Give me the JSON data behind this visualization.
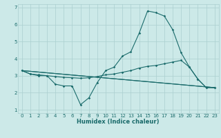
{
  "title": "",
  "xlabel": "Humidex (Indice chaleur)",
  "background_color": "#cce9e8",
  "grid_color": "#aacfcf",
  "line_color": "#1a6b6b",
  "xlim": [
    -0.5,
    23.5
  ],
  "ylim": [
    0.8,
    7.2
  ],
  "xticks": [
    0,
    1,
    2,
    3,
    4,
    5,
    6,
    7,
    8,
    9,
    10,
    11,
    12,
    13,
    14,
    15,
    16,
    17,
    18,
    19,
    20,
    21,
    22,
    23
  ],
  "yticks": [
    1,
    2,
    3,
    4,
    5,
    6,
    7
  ],
  "line1_x": [
    0,
    1,
    2,
    3,
    4,
    5,
    6,
    7,
    8,
    9,
    10,
    11,
    12,
    13,
    14,
    15,
    16,
    17,
    18,
    19,
    20,
    21,
    22,
    23
  ],
  "line1_y": [
    3.3,
    3.1,
    3.0,
    3.0,
    2.5,
    2.4,
    2.4,
    1.3,
    1.7,
    2.6,
    3.3,
    3.5,
    4.15,
    4.4,
    5.5,
    6.8,
    6.7,
    6.5,
    5.7,
    4.35,
    3.5,
    2.8,
    2.3,
    2.3
  ],
  "line2_x": [
    0,
    1,
    2,
    3,
    4,
    5,
    6,
    7,
    8,
    9,
    10,
    11,
    12,
    13,
    14,
    15,
    16,
    17,
    18,
    19,
    20,
    21,
    22,
    23
  ],
  "line2_y": [
    3.3,
    3.1,
    3.05,
    3.0,
    2.95,
    2.9,
    2.88,
    2.85,
    2.88,
    2.95,
    3.05,
    3.1,
    3.2,
    3.3,
    3.45,
    3.55,
    3.6,
    3.7,
    3.8,
    3.9,
    3.5,
    2.8,
    2.3,
    2.3
  ],
  "line3_x": [
    0,
    23
  ],
  "line3_y": [
    3.3,
    2.3
  ],
  "line4_x": [
    0,
    23
  ],
  "line4_y": [
    3.3,
    2.3
  ]
}
